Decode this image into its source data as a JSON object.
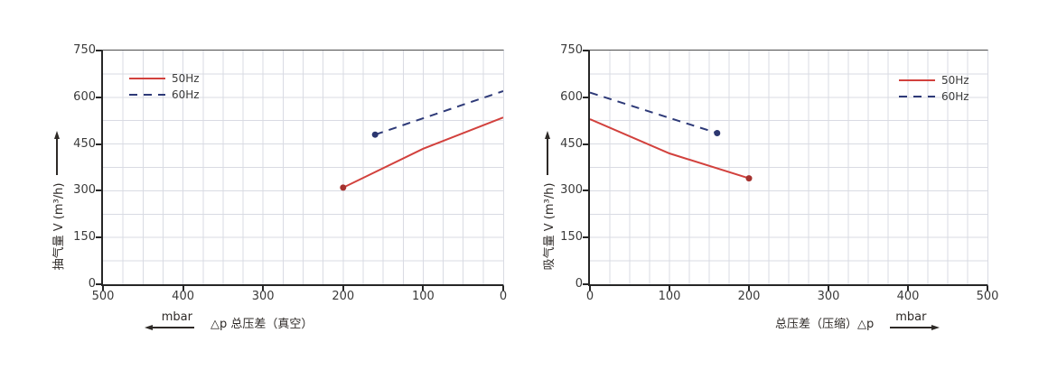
{
  "palette": {
    "page_bg": "#ffffff",
    "plot_bg": "#ffffff",
    "grid": "#d9dbe3",
    "axis": "#262626",
    "plot_top_border": "#4d4d4d",
    "tick_label": "#3b3b3b",
    "axis_label": "#2e2a27",
    "legend_text": "#3b3b3b"
  },
  "chart_data": [
    {
      "id": "vacuum",
      "type": "line",
      "title": "",
      "ylabel": "抽气量 V (m³/h)",
      "xlabel": "△p 总压差（真空）",
      "x_unit": "mbar",
      "unit_arrow_direction": "left",
      "x_axis_reversed": true,
      "xlim": [
        0,
        500
      ],
      "ylim": [
        0,
        750
      ],
      "xticks": [
        500,
        400,
        300,
        200,
        100,
        0
      ],
      "yticks": [
        0,
        150,
        300,
        450,
        600,
        750
      ],
      "x_minor_grid_step": 25,
      "y_minor_grid_step": 75,
      "grid": true,
      "legend_position": "top-left",
      "series": [
        {
          "name": "50Hz",
          "line_style": "solid",
          "color": "#d2413d",
          "marker_color": "#a5322f",
          "points": [
            [
              200,
              310
            ],
            [
              100,
              435
            ],
            [
              0,
              535
            ]
          ],
          "markers": [
            [
              200,
              310
            ]
          ]
        },
        {
          "name": "60Hz",
          "line_style": "dashed",
          "color": "#2e3a78",
          "marker_color": "#2c3770",
          "points": [
            [
              160,
              480
            ],
            [
              0,
              620
            ]
          ],
          "markers": [
            [
              160,
              480
            ]
          ]
        }
      ]
    },
    {
      "id": "compression",
      "type": "line",
      "title": "",
      "ylabel": "吸气量 V (m³/h)",
      "xlabel": "总压差（压缩）△p",
      "x_unit": "mbar",
      "unit_arrow_direction": "right",
      "x_axis_reversed": false,
      "xlim": [
        0,
        500
      ],
      "ylim": [
        0,
        750
      ],
      "xticks": [
        0,
        100,
        200,
        300,
        400,
        500
      ],
      "yticks": [
        0,
        150,
        300,
        450,
        600,
        750
      ],
      "x_minor_grid_step": 25,
      "y_minor_grid_step": 75,
      "grid": true,
      "legend_position": "top-right",
      "series": [
        {
          "name": "50Hz",
          "line_style": "solid",
          "color": "#d2413d",
          "marker_color": "#a5322f",
          "points": [
            [
              0,
              530
            ],
            [
              100,
              420
            ],
            [
              200,
              340
            ]
          ],
          "markers": [
            [
              200,
              340
            ]
          ]
        },
        {
          "name": "60Hz",
          "line_style": "dashed",
          "color": "#2e3a78",
          "marker_color": "#2c3770",
          "points": [
            [
              0,
              615
            ],
            [
              80,
              550
            ],
            [
              160,
              485
            ]
          ],
          "markers": [
            [
              160,
              485
            ]
          ]
        }
      ]
    }
  ]
}
